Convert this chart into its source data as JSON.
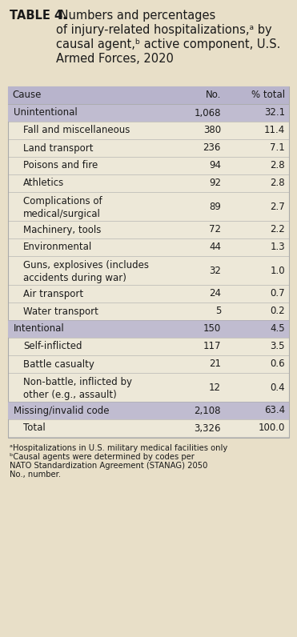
{
  "title_bold": "TABLE 4.",
  "title_rest": " Numbers and percentages\nof injury-related hospitalizations,ᵃ by\ncausal agent,ᵇ active component, U.S.\nArmed Forces, 2020",
  "col_headers": [
    "Cause",
    "No.",
    "% total"
  ],
  "rows": [
    {
      "cause": "Unintentional",
      "no": "1,068",
      "pct": "32.1",
      "indent": false,
      "highlight": true
    },
    {
      "cause": "Fall and miscellaneous",
      "no": "380",
      "pct": "11.4",
      "indent": true,
      "highlight": false
    },
    {
      "cause": "Land transport",
      "no": "236",
      "pct": "7.1",
      "indent": true,
      "highlight": false
    },
    {
      "cause": "Poisons and fire",
      "no": "94",
      "pct": "2.8",
      "indent": true,
      "highlight": false
    },
    {
      "cause": "Athletics",
      "no": "92",
      "pct": "2.8",
      "indent": true,
      "highlight": false
    },
    {
      "cause": "Complications of\nmedical/surgical",
      "no": "89",
      "pct": "2.7",
      "indent": true,
      "highlight": false
    },
    {
      "cause": "Machinery, tools",
      "no": "72",
      "pct": "2.2",
      "indent": true,
      "highlight": false
    },
    {
      "cause": "Environmental",
      "no": "44",
      "pct": "1.3",
      "indent": true,
      "highlight": false
    },
    {
      "cause": "Guns, explosives (includes\naccidents during war)",
      "no": "32",
      "pct": "1.0",
      "indent": true,
      "highlight": false
    },
    {
      "cause": "Air transport",
      "no": "24",
      "pct": "0.7",
      "indent": true,
      "highlight": false
    },
    {
      "cause": "Water transport",
      "no": "5",
      "pct": "0.2",
      "indent": true,
      "highlight": false
    },
    {
      "cause": "Intentional",
      "no": "150",
      "pct": "4.5",
      "indent": false,
      "highlight": true
    },
    {
      "cause": "Self-inflicted",
      "no": "117",
      "pct": "3.5",
      "indent": true,
      "highlight": false
    },
    {
      "cause": "Battle casualty",
      "no": "21",
      "pct": "0.6",
      "indent": true,
      "highlight": false
    },
    {
      "cause": "Non-battle, inflicted by\nother (e.g., assault)",
      "no": "12",
      "pct": "0.4",
      "indent": true,
      "highlight": false
    },
    {
      "cause": "Missing/invalid code",
      "no": "2,108",
      "pct": "63.4",
      "indent": false,
      "highlight": true
    },
    {
      "cause": "Total",
      "no": "3,326",
      "pct": "100.0",
      "indent": true,
      "highlight": false
    }
  ],
  "footnote_lines": [
    "ᵃHospitalizations in U.S. military medical facilities only",
    "ᵇCausal agents were determined by codes per",
    "NATO Standardization Agreement (STANAG) 2050",
    "No., number."
  ],
  "bg_color": "#e8dfc8",
  "table_bg": "#ede8d8",
  "header_bg": "#b8b4cc",
  "highlight_bg": "#c0bcd0",
  "sep_color": "#aaaaaa",
  "text_color": "#1a1a1a",
  "font_size_title": 10.5,
  "font_size_table": 8.5,
  "font_size_fn": 7.2
}
